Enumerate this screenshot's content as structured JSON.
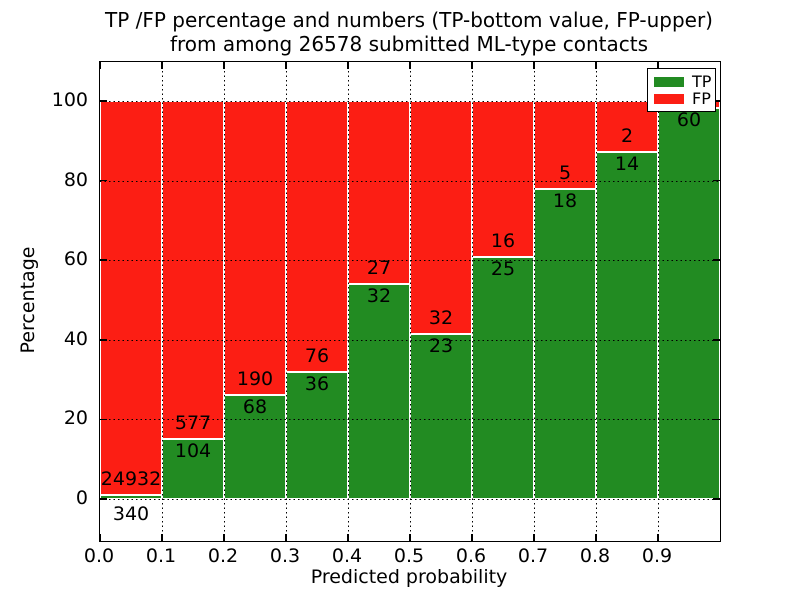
{
  "title": {
    "line1": "TP /FP percentage and numbers (TP-bottom value, FP-upper)",
    "line2": "from among 26578 submitted ML-type contacts"
  },
  "axes": {
    "xlabel": "Predicted probability",
    "ylabel": "Percentage"
  },
  "colors": {
    "tp_green": "#228b22",
    "fp_red": "#fc1e14",
    "background": "#ffffff",
    "grid": "#000000"
  },
  "legend": {
    "position": "upper-right",
    "entries": [
      {
        "label": "TP",
        "color": "#228b22"
      },
      {
        "label": "FP",
        "color": "#fc1e14"
      }
    ]
  },
  "chart_data": {
    "type": "bar",
    "stacked": true,
    "title": "TP /FP percentage and numbers (TP-bottom value, FP-upper) from among 26578 submitted ML-type contacts",
    "xlabel": "Predicted probability",
    "ylabel": "Percentage",
    "total_submitted": 26578,
    "xlim": [
      0.0,
      1.0
    ],
    "ylim": [
      -10.5,
      110
    ],
    "grid": "dotted-black",
    "ytick_values": [
      0,
      20,
      40,
      60,
      80,
      100
    ],
    "xtick_labels": [
      "0.0",
      "0.1",
      "0.2",
      "0.3",
      "0.4",
      "0.5",
      "0.6",
      "0.7",
      "0.8",
      "0.9"
    ],
    "bin_width": 0.1,
    "series_names": [
      "TP",
      "FP"
    ],
    "bars": [
      {
        "bin": "0.0-0.1",
        "tp_count": 340,
        "fp_count": 24932,
        "tp_label": "340",
        "fp_label": "24932",
        "tp_pct": 1.35,
        "fp_pct": 98.65
      },
      {
        "bin": "0.1-0.2",
        "tp_count": 104,
        "fp_count": 577,
        "tp_label": "104",
        "fp_label": "577",
        "tp_pct": 15.27,
        "fp_pct": 84.73
      },
      {
        "bin": "0.2-0.3",
        "tp_count": 68,
        "fp_count": 190,
        "tp_label": "68",
        "fp_label": "190",
        "tp_pct": 26.36,
        "fp_pct": 73.64
      },
      {
        "bin": "0.3-0.4",
        "tp_count": 36,
        "fp_count": 76,
        "tp_label": "36",
        "fp_label": "76",
        "tp_pct": 32.14,
        "fp_pct": 67.86
      },
      {
        "bin": "0.4-0.5",
        "tp_count": 32,
        "fp_count": 27,
        "tp_label": "32",
        "fp_label": "27",
        "tp_pct": 54.24,
        "fp_pct": 45.76
      },
      {
        "bin": "0.5-0.6",
        "tp_count": 23,
        "fp_count": 32,
        "tp_label": "23",
        "fp_label": "32",
        "tp_pct": 41.82,
        "fp_pct": 58.18
      },
      {
        "bin": "0.6-0.7",
        "tp_count": 25,
        "fp_count": 16,
        "tp_label": "25",
        "fp_label": "16",
        "tp_pct": 60.98,
        "fp_pct": 39.02
      },
      {
        "bin": "0.7-0.8",
        "tp_count": 18,
        "fp_count": 5,
        "tp_label": "18",
        "fp_label": "5",
        "tp_pct": 78.26,
        "fp_pct": 21.74
      },
      {
        "bin": "0.8-0.9",
        "tp_count": 14,
        "fp_count": 2,
        "tp_label": "14",
        "fp_label": "2",
        "tp_pct": 87.5,
        "fp_pct": 12.5
      },
      {
        "bin": "0.9-1.0",
        "tp_count": 60,
        "fp_count": null,
        "tp_label": "60",
        "fp_label": "",
        "tp_pct": 98.4,
        "fp_pct": 1.6
      }
    ]
  }
}
